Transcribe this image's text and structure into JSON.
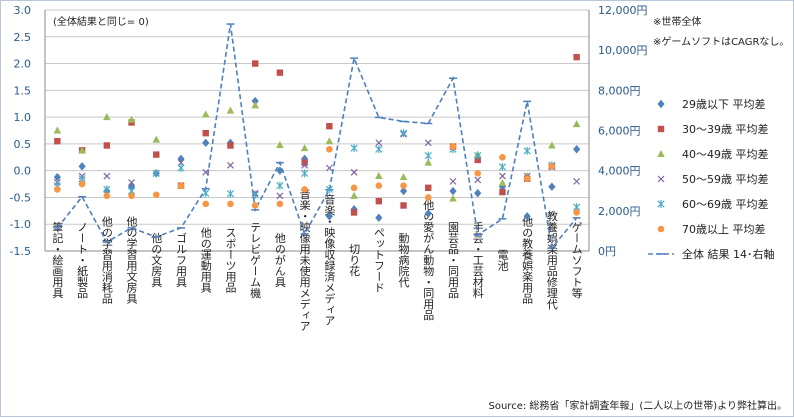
{
  "chart_data": {
    "type": "scatter",
    "annotation": "(全体結果と同じ= 0)",
    "notes": [
      "※世帯全体",
      "※ゲームソフトはCAGRなし。"
    ],
    "source": "Source: 総務省「家計調査年報」(二人以上の世帯)より弊社算出。",
    "categories": [
      "筆記・絵画用具",
      "ノート・紙製品",
      "他の学習用消耗品",
      "他の学習用文房具",
      "他の文房具",
      "ゴルフ用具",
      "他の運動用具",
      "スポーツ用品",
      "テレビゲーム機",
      "他のがん具",
      "音楽・映像用未使用メディア",
      "音楽・映像収録済メディア",
      "切り花",
      "ペットフード",
      "動物病院代",
      "他の愛がん動物・同用品",
      "園芸品・同用品",
      "手芸・工芸材料",
      "電池",
      "他の教養娯楽用品",
      "教養娯楽用品修理代",
      "ゲームソフト等"
    ],
    "y_left": {
      "min": -1.5,
      "max": 3.0,
      "ticks": [
        "-1.5",
        "-1.0",
        "-0.5",
        "0.0",
        "0.5",
        "1.0",
        "1.5",
        "2.0",
        "2.5",
        "3.0"
      ]
    },
    "y_right": {
      "min": 0,
      "max": 12000,
      "ticks": [
        "0円",
        "2,000円",
        "4,000円",
        "6,000円",
        "8,000円",
        "10,000円",
        "12,000円"
      ]
    },
    "grid": true,
    "legend_position": "right",
    "series": [
      {
        "name": "29歳以下 平均差",
        "color": "#4f81bd",
        "marker": "diamond",
        "values": [
          -0.12,
          0.08,
          -0.38,
          -0.3,
          -0.05,
          0.22,
          0.52,
          0.52,
          1.3,
          0.0,
          0.22,
          -0.85,
          -0.72,
          -0.88,
          -0.38,
          -0.8,
          -0.38,
          -0.42,
          -0.3,
          -0.85,
          -0.3,
          0.4
        ]
      },
      {
        "name": "30～39歳 平均差",
        "color": "#c0504d",
        "marker": "square",
        "values": [
          0.55,
          0.38,
          0.47,
          0.9,
          0.3,
          -0.28,
          0.7,
          0.47,
          2.0,
          1.83,
          0.15,
          0.83,
          -0.78,
          -0.57,
          -0.65,
          -0.32,
          0.45,
          0.2,
          -0.4,
          -0.15,
          0.08,
          2.12
        ]
      },
      {
        "name": "40～49歳 平均差",
        "color": "#9bbb59",
        "marker": "triangle",
        "values": [
          0.75,
          0.38,
          1.0,
          0.95,
          0.58,
          -0.28,
          1.05,
          1.12,
          1.22,
          0.48,
          0.42,
          0.55,
          -0.47,
          -0.1,
          -0.12,
          0.15,
          -0.52,
          0.3,
          -0.23,
          -0.1,
          0.47,
          0.87
        ]
      },
      {
        "name": "50～59歳 平均差",
        "color": "#8064a2",
        "marker": "x",
        "values": [
          -0.22,
          -0.1,
          -0.1,
          -0.22,
          -0.05,
          0.15,
          -0.03,
          0.1,
          -0.42,
          -0.47,
          0.1,
          0.05,
          -0.03,
          0.52,
          0.68,
          0.52,
          -0.2,
          -0.17,
          -0.1,
          -0.1,
          0.07,
          -0.2
        ]
      },
      {
        "name": "60～69歳 平均差",
        "color": "#4bacc6",
        "marker": "asterisk",
        "values": [
          -0.28,
          -0.15,
          -0.35,
          -0.38,
          -0.05,
          0.05,
          -0.42,
          -0.43,
          -0.45,
          -0.28,
          -0.05,
          -0.35,
          0.42,
          0.4,
          0.7,
          0.28,
          0.4,
          0.28,
          0.07,
          0.37,
          0.1,
          -0.68
        ]
      },
      {
        "name": "70歳以上 平均差",
        "color": "#f79646",
        "marker": "circle",
        "values": [
          -0.35,
          -0.25,
          -0.47,
          -0.47,
          -0.45,
          -0.28,
          -0.62,
          -0.62,
          -0.65,
          -0.62,
          -0.35,
          0.4,
          -0.32,
          -0.28,
          -0.28,
          -0.5,
          0.45,
          -0.05,
          0.25,
          -0.15,
          0.08,
          -0.78
        ]
      },
      {
        "name": "全体 結果 14･右軸",
        "color": "#4f7fbf",
        "marker": "dash",
        "axis": "right",
        "values": [
          1150,
          2700,
          450,
          1150,
          700,
          1150,
          3100,
          11300,
          2050,
          4400,
          850,
          3050,
          9600,
          6650,
          6450,
          6350,
          8600,
          800,
          1600,
          7450,
          150,
          1650
        ]
      }
    ]
  }
}
